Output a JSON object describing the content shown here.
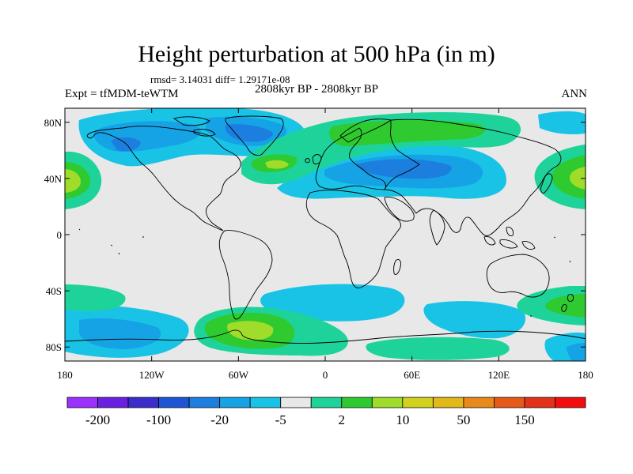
{
  "title": "Height perturbation at 500 hPa (in m)",
  "stats": "rmsd= 3.14031 diff= 1.29171e-08",
  "experiment": "Expt = tfMDM-teWTM",
  "period": "2808kyr BP - 2808kyr BP",
  "season": "ANN",
  "lon_ticks": [
    "180",
    "120W",
    "60W",
    "0",
    "60E",
    "120E",
    "180"
  ],
  "lat_ticks": [
    "80N",
    "40N",
    "0",
    "40S",
    "80S"
  ],
  "colorbar": {
    "colors": [
      "#9b30ff",
      "#6a20e0",
      "#3a2dcc",
      "#1d55d6",
      "#1c7fe0",
      "#16a3e6",
      "#19c3e6",
      "#e8e8e8",
      "#1ed39a",
      "#2fc930",
      "#9fdd2a",
      "#d2d21e",
      "#e3b81b",
      "#e88a1a",
      "#e65a17",
      "#e4321a",
      "#f20e0e"
    ],
    "labels": [
      "-200",
      "-100",
      "-20",
      "-5",
      "2",
      "10",
      "50",
      "150"
    ]
  }
}
